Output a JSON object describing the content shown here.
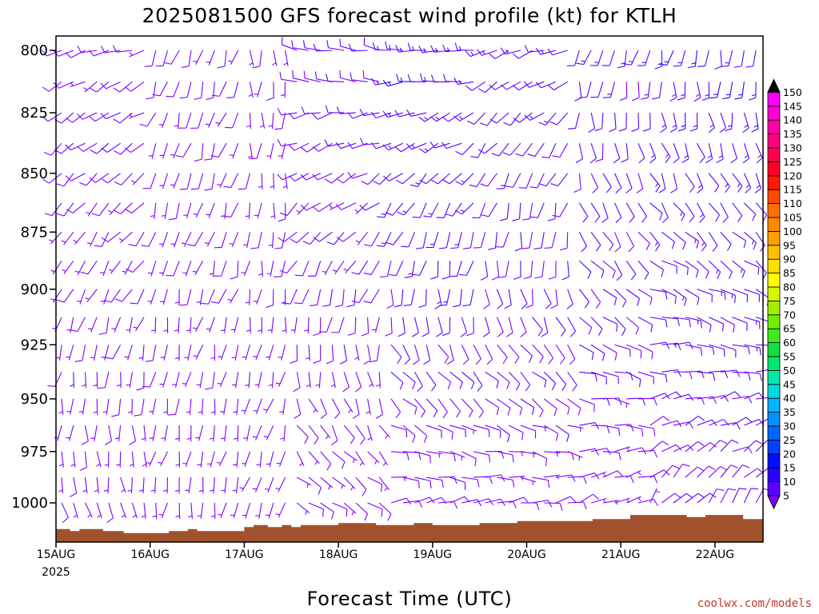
{
  "chart_data": {
    "type": "wind-barb-profile",
    "title": "2025081500 GFS forecast wind profile (kt) for KTLH",
    "xlabel": "Forecast Time (UTC)",
    "ylabel": "",
    "credit": "coolwx.com/models",
    "x_ticks": [
      {
        "label": "15AUG",
        "sub": "2025",
        "day": 0
      },
      {
        "label": "16AUG",
        "sub": "",
        "day": 1
      },
      {
        "label": "17AUG",
        "sub": "",
        "day": 2
      },
      {
        "label": "18AUG",
        "sub": "",
        "day": 3
      },
      {
        "label": "19AUG",
        "sub": "",
        "day": 4
      },
      {
        "label": "20AUG",
        "sub": "",
        "day": 5
      },
      {
        "label": "21AUG",
        "sub": "",
        "day": 6
      },
      {
        "label": "22AUG",
        "sub": "",
        "day": 7
      }
    ],
    "xlim_days": [
      0,
      7.5
    ],
    "y_ticks": [
      800,
      825,
      850,
      875,
      900,
      925,
      950,
      975,
      1000
    ],
    "ylim_hpa": [
      790,
      1018
    ],
    "y_scale": "log-pressure (inverted)",
    "colorbar": {
      "levels": [
        5,
        10,
        15,
        20,
        25,
        30,
        35,
        40,
        45,
        50,
        55,
        60,
        65,
        70,
        75,
        80,
        85,
        90,
        95,
        100,
        105,
        110,
        115,
        120,
        125,
        130,
        135,
        140,
        145,
        150
      ],
      "colors": [
        "#7f00ff",
        "#5a00ff",
        "#2a00ff",
        "#0010ff",
        "#0040ff",
        "#0068ff",
        "#0090ff",
        "#00b4ff",
        "#00d8e0",
        "#00e8b0",
        "#00e870",
        "#10e040",
        "#40e820",
        "#70f000",
        "#a0f000",
        "#d8f800",
        "#ffff00",
        "#ffe000",
        "#ffc000",
        "#ffa000",
        "#ff8800",
        "#ff7000",
        "#ff4800",
        "#ff1800",
        "#ff0028",
        "#ff0050",
        "#ff0080",
        "#ff00a8",
        "#ff00d0",
        "#ff00ff"
      ]
    },
    "terrain": {
      "color": "#a0522d",
      "surface_pressure_days": [
        0,
        0.15,
        0.25,
        0.45,
        0.5,
        0.7,
        0.72,
        1.2,
        1.25,
        1.4,
        1.5,
        1.8,
        2.0,
        2.1,
        2.25,
        2.4,
        2.5,
        2.6,
        2.8,
        3.0,
        3.3,
        3.4,
        3.6,
        3.8,
        4.0,
        4.3,
        4.5,
        4.7,
        4.9,
        5.2,
        5.5,
        5.7,
        5.9,
        6.1,
        6.3,
        6.5,
        6.7,
        6.9,
        7.1,
        7.3,
        7.5
      ],
      "surface_pressure_hpa": [
        1013,
        1014,
        1013,
        1013,
        1014,
        1014,
        1015,
        1014,
        1014,
        1013,
        1014,
        1014,
        1012,
        1011,
        1012,
        1011,
        1012,
        1011,
        1011,
        1010,
        1010,
        1011,
        1011,
        1010,
        1011,
        1011,
        1010,
        1010,
        1009,
        1009,
        1009,
        1008,
        1008,
        1006,
        1006,
        1006,
        1007,
        1006,
        1006,
        1008,
        1008
      ]
    },
    "barbs": {
      "time_step_days": 0.125,
      "levels_hpa": [
        800,
        812.5,
        825,
        837.5,
        850,
        862.5,
        875,
        887.5,
        900,
        912.5,
        925,
        937.5,
        950,
        962.5,
        975,
        987.5,
        1000,
        1012.5
      ],
      "note_pattern": "direction_deg and speed_kt per time/level generated from regime table",
      "regimes": [
        {
          "from_day": 0.0,
          "to_day": 1.0,
          "dir_low": 160,
          "dir_high": 250,
          "spd_low": 6,
          "spd_high": 9
        },
        {
          "from_day": 1.0,
          "to_day": 2.0,
          "dir_low": 190,
          "dir_high": 200,
          "spd_low": 5,
          "spd_high": 8
        },
        {
          "from_day": 2.0,
          "to_day": 2.5,
          "dir_low": 200,
          "dir_high": 180,
          "spd_low": 5,
          "spd_high": 7
        },
        {
          "from_day": 2.5,
          "to_day": 3.5,
          "dir_low": 110,
          "dir_high": 280,
          "spd_low": 7,
          "spd_high": 10
        },
        {
          "from_day": 3.5,
          "to_day": 4.5,
          "dir_low": 70,
          "dir_high": 275,
          "spd_low": 8,
          "spd_high": 14
        },
        {
          "from_day": 4.5,
          "to_day": 5.5,
          "dir_low": 70,
          "dir_high": 250,
          "spd_low": 8,
          "spd_high": 12
        },
        {
          "from_day": 5.5,
          "to_day": 6.3,
          "dir_low": 60,
          "dir_high": 195,
          "spd_low": 8,
          "spd_high": 12
        },
        {
          "from_day": 6.3,
          "to_day": 7.5,
          "dir_low": 30,
          "dir_high": 190,
          "spd_low": 9,
          "spd_high": 14
        }
      ]
    }
  }
}
